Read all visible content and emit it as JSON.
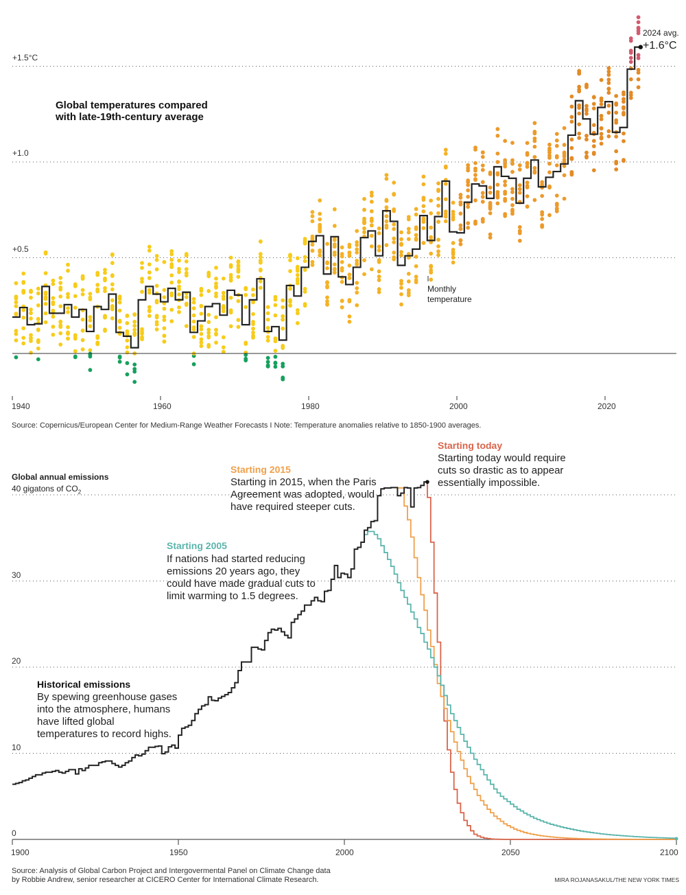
{
  "chart_data": [
    {
      "type": "line",
      "title": "Global temperatures compared with late-19th-century average",
      "x_ticks": [
        "1940",
        "1960",
        "1980",
        "2000",
        "2020"
      ],
      "y_ticks": [
        "+0.5",
        "+1.0",
        "+1.5°C"
      ],
      "xlim": [
        1940,
        2030
      ],
      "ylim": [
        -0.25,
        1.8
      ],
      "grid": "dotted horizontal",
      "annual_start_year": 1940,
      "annual_values": [
        0.19,
        0.24,
        0.15,
        0.155,
        0.35,
        0.21,
        0.21,
        0.255,
        0.19,
        0.23,
        0.115,
        0.245,
        0.23,
        0.31,
        0.11,
        0.09,
        0.03,
        0.28,
        0.35,
        0.31,
        0.27,
        0.34,
        0.28,
        0.32,
        0.11,
        0.17,
        0.245,
        0.26,
        0.2,
        0.33,
        0.305,
        0.15,
        0.28,
        0.39,
        0.115,
        0.14,
        0.07,
        0.355,
        0.3,
        0.45,
        0.585,
        0.615,
        0.415,
        0.61,
        0.4,
        0.36,
        0.45,
        0.605,
        0.64,
        0.51,
        0.745,
        0.69,
        0.46,
        0.51,
        0.545,
        0.72,
        0.59,
        0.715,
        0.9,
        0.635,
        0.63,
        0.79,
        0.885,
        0.875,
        0.81,
        0.975,
        0.925,
        0.915,
        0.785,
        0.915,
        1.01,
        0.87,
        0.92,
        0.95,
        0.99,
        1.14,
        1.32,
        1.225,
        1.145,
        1.285,
        1.315,
        1.155,
        1.18,
        1.485,
        1.6
      ],
      "monthly_label": [
        "Monthly",
        "temperature"
      ],
      "callout": {
        "label": "2024 avg.",
        "value": "+1.6°C"
      },
      "colors": {
        "line": "#222222",
        "below_zero": "#16a05d",
        "early": "#f7cc1b",
        "mid": "#f4b226",
        "late": "#ec9a2b",
        "recent": "#e38b27",
        "above_1_5": "#d35a6f"
      },
      "source": "Source: Copernicus/European Center for Medium-Range Weather Forecasts  I  Note: Temperature anomalies relative to 1850-1900 averages."
    },
    {
      "type": "line",
      "title": "Global annual emissions",
      "unit_label": "40 gigatons of CO",
      "unit_sub": "2",
      "x_ticks": [
        "1900",
        "1950",
        "2000",
        "2050",
        "2100"
      ],
      "y_ticks": [
        "0",
        "10",
        "20",
        "30"
      ],
      "xlim": [
        1900,
        2100
      ],
      "ylim": [
        0,
        45
      ],
      "grid": "dotted horizontal",
      "series": [
        {
          "name": "Historical emissions",
          "color": "#222222",
          "start_year": 1900,
          "values": [
            6.4,
            6.5,
            6.6,
            6.8,
            6.9,
            7.1,
            7.3,
            7.5,
            7.5,
            7.7,
            7.8,
            7.8,
            7.9,
            8.0,
            7.8,
            7.7,
            7.9,
            8.1,
            8.1,
            7.6,
            8.2,
            8.0,
            8.3,
            8.6,
            8.6,
            8.6,
            8.9,
            9.0,
            9.1,
            9.1,
            8.8,
            8.6,
            8.4,
            8.6,
            8.9,
            9.1,
            9.5,
            9.8,
            9.7,
            9.9,
            10.3,
            10.7,
            10.7,
            10.8,
            10.85,
            9.95,
            10.15,
            10.75,
            10.95,
            10.6,
            12.1,
            12.9,
            13.05,
            13.25,
            13.8,
            14.6,
            15.1,
            15.5,
            15.65,
            16.55,
            16.15,
            16.1,
            16.4,
            16.6,
            16.8,
            17.05,
            17.6,
            18.2,
            19.6,
            20.6,
            20.6,
            20.6,
            22.3,
            22.3,
            22.1,
            22.0,
            23.1,
            24.0,
            24.4,
            24.3,
            24.5,
            24.1,
            23.7,
            23.4,
            25.2,
            25.6,
            26.1,
            26.5,
            27.2,
            27.2,
            27.7,
            28.1,
            27.7,
            27.6,
            28.8,
            28.9,
            30.2,
            31.8,
            30.4,
            30.9,
            30.8,
            30.4,
            31.4,
            33.7,
            33.9,
            34.5,
            35.9,
            36.2,
            36.9,
            37.0,
            39.9,
            40.7,
            40.8,
            40.8,
            40.85,
            40.85,
            39.9,
            40.2,
            40.85,
            40.8,
            38.6,
            40.8,
            40.85,
            41.1,
            41.5
          ]
        },
        {
          "name": "Starting 2005",
          "color": "#5bb5ac",
          "start_year": 2006,
          "values": [
            35.4,
            35.75,
            35.75,
            35.4,
            34.9,
            34.1,
            33.3,
            32.5,
            31.7,
            30.8,
            29.8,
            28.9,
            28.1,
            27.3,
            26.4,
            25.6,
            24.6,
            23.9,
            22.9,
            22.1,
            21.1,
            20.0,
            19.0,
            17.9,
            16.7,
            15.6,
            14.6,
            13.8,
            13.0,
            12.2,
            11.4,
            10.7,
            10.0,
            9.3,
            8.7,
            8.1,
            7.5,
            6.9,
            6.4,
            5.85,
            5.4,
            5.0,
            4.7,
            4.4,
            4.1,
            3.8,
            3.5,
            3.3,
            3.05,
            2.85,
            2.65,
            2.45,
            2.3,
            2.15,
            2.0,
            1.87,
            1.75,
            1.65,
            1.55,
            1.45,
            1.36,
            1.27,
            1.19,
            1.11,
            1.04,
            0.97,
            0.91,
            0.85,
            0.8,
            0.75,
            0.7,
            0.65,
            0.61,
            0.57,
            0.53,
            0.5,
            0.47,
            0.44,
            0.41,
            0.38,
            0.36,
            0.33,
            0.31,
            0.29,
            0.27,
            0.25,
            0.23,
            0.22,
            0.2,
            0.19,
            0.18,
            0.16,
            0.15,
            0.14,
            0.13
          ]
        },
        {
          "name": "Starting 2015",
          "color": "#f0a04b",
          "start_year": 2016,
          "values": [
            40.8,
            40.8,
            38.7,
            37.1,
            35.1,
            32.7,
            30.4,
            28.4,
            26.6,
            24.3,
            22.4,
            20.3,
            18.1,
            16.6,
            15.2,
            13.8,
            12.5,
            11.3,
            10.2,
            9.2,
            8.2,
            7.3,
            6.5,
            5.8,
            5.1,
            4.5,
            4.0,
            3.5,
            3.1,
            2.7,
            2.4,
            2.1,
            1.8,
            1.6,
            1.4,
            1.2,
            1.05,
            0.92,
            0.8,
            0.7,
            0.62,
            0.55,
            0.48,
            0.42,
            0.37,
            0.33,
            0.29,
            0.25,
            0.22,
            0.2,
            0.17,
            0.15,
            0.13,
            0.12,
            0.1,
            0.09,
            0.08,
            0.07,
            0.06,
            0.05,
            0.05,
            0.04,
            0.04,
            0.03,
            0.03,
            0.03,
            0.02,
            0.02,
            0.02,
            0.02,
            0.01
          ]
        },
        {
          "name": "Starting today",
          "color": "#d9644a",
          "start_year": 2025,
          "values": [
            39.7,
            34.5,
            28.6,
            22.9,
            17.9,
            13.75,
            10.4,
            7.8,
            5.8,
            4.2,
            3.1,
            2.2,
            1.6,
            1.0,
            0.6,
            0.4,
            0.25,
            0.15,
            0.1,
            0.05,
            0.03,
            0.02,
            0.01,
            0
          ]
        }
      ],
      "annotations": {
        "historical": {
          "title": "Historical emissions",
          "body": "By spewing greenhouse gases into the atmosphere, humans have lifted global temperatures to record highs."
        },
        "s2005": {
          "title": "Starting 2005",
          "body": "If nations had started reducing emissions 20 years ago, they could have made gradual cuts to limit warming to 1.5 degrees."
        },
        "s2015": {
          "title": "Starting 2015",
          "body": "Starting in 2015, when the Paris Agreement was adopted, would have required steeper cuts."
        },
        "today": {
          "title": "Starting today",
          "body": "Starting today would require cuts so drastic as to appear essentially impossible."
        }
      },
      "source_lines": [
        "Source: Analysis of Global Carbon Project and Intergovermental Panel on Climate Change data",
        "by Robbie Andrew, senior researcher at CICERO Center for International Climate Research."
      ],
      "credit": "MIRA ROJANASAKUL/THE NEW YORK TIMES"
    }
  ]
}
